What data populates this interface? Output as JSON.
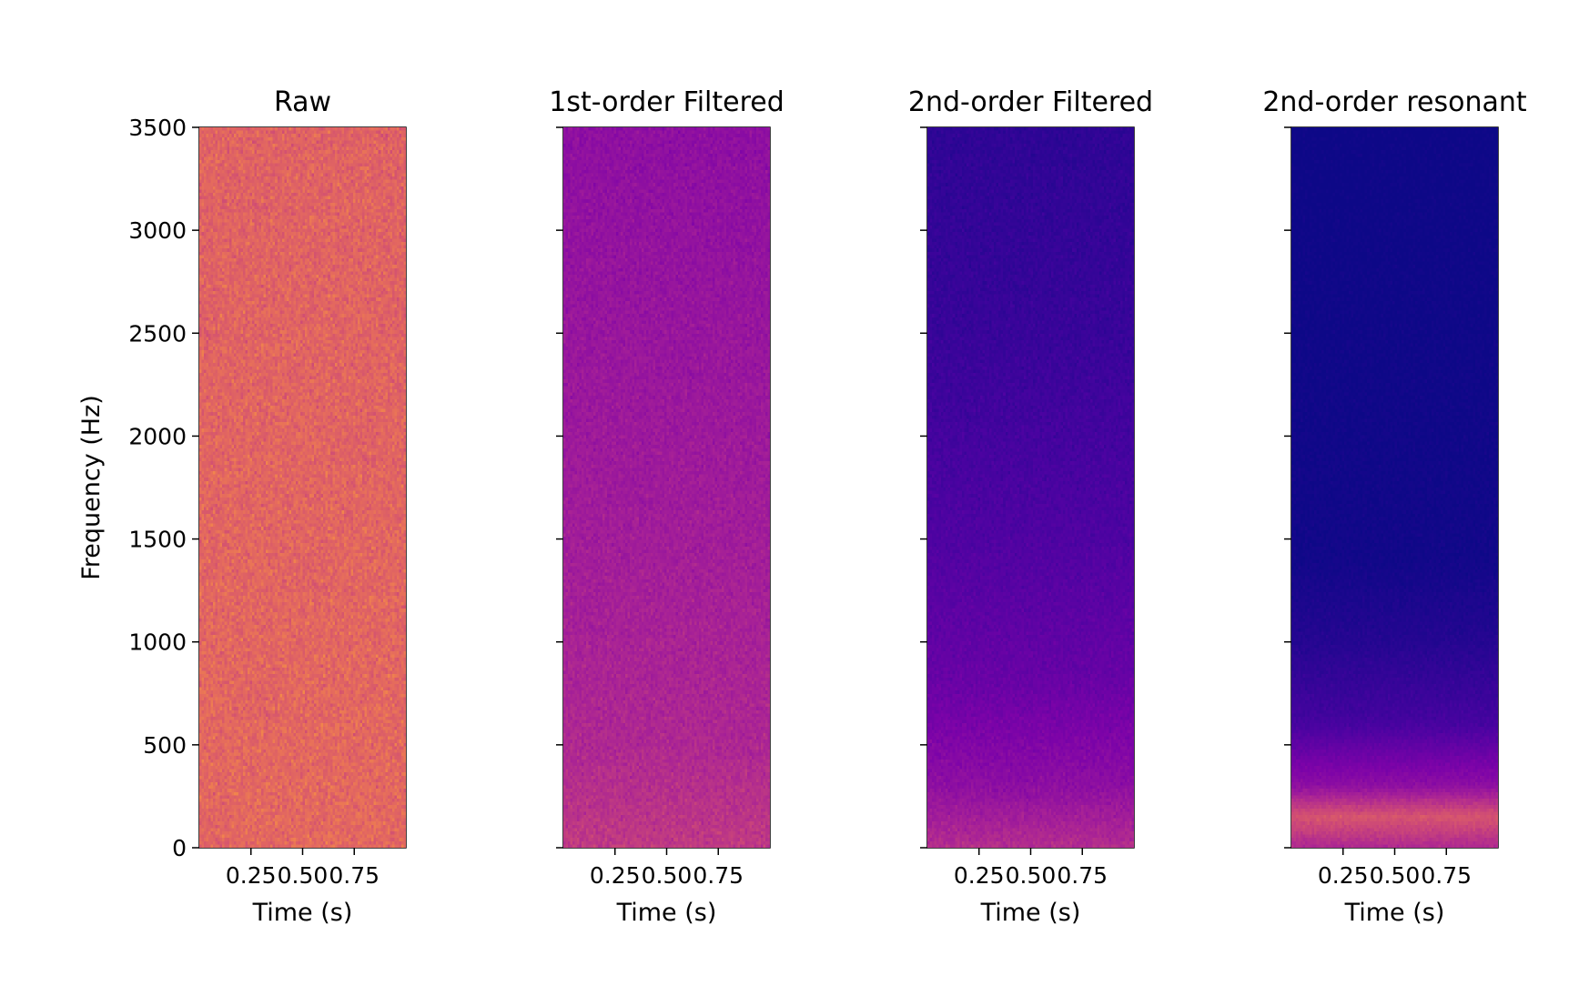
{
  "chart_data": [
    {
      "type": "heatmap",
      "title": "Raw",
      "xlabel": "Time (s)",
      "ylabel": "Frequency (Hz)",
      "x_ticks": [
        "0.25",
        "0.50",
        "0.75"
      ],
      "y_ticks": [
        "0",
        "500",
        "1000",
        "1500",
        "2000",
        "2500",
        "3000",
        "3500"
      ],
      "xlim": [
        0.0,
        1.0
      ],
      "ylim": [
        0,
        3500
      ],
      "colormap": "plasma",
      "intensity_profile": [
        {
          "freq": 0,
          "level": 0.62
        },
        {
          "freq": 3500,
          "level": 0.6
        }
      ],
      "noise": 0.1
    },
    {
      "type": "heatmap",
      "title": "1st-order Filtered",
      "xlabel": "Time (s)",
      "ylabel": "",
      "x_ticks": [
        "0.25",
        "0.50",
        "0.75"
      ],
      "y_ticks": [
        "",
        "",
        "",
        "",
        "",
        "",
        "",
        ""
      ],
      "xlim": [
        0.0,
        1.0
      ],
      "ylim": [
        0,
        3500
      ],
      "colormap": "plasma",
      "intensity_profile": [
        {
          "freq": 0,
          "level": 0.46
        },
        {
          "freq": 500,
          "level": 0.4
        },
        {
          "freq": 1500,
          "level": 0.36
        },
        {
          "freq": 3500,
          "level": 0.3
        }
      ],
      "noise": 0.08
    },
    {
      "type": "heatmap",
      "title": "2nd-order Filtered",
      "xlabel": "Time (s)",
      "ylabel": "",
      "x_ticks": [
        "0.25",
        "0.50",
        "0.75"
      ],
      "y_ticks": [
        "",
        "",
        "",
        "",
        "",
        "",
        "",
        ""
      ],
      "xlim": [
        0.0,
        1.0
      ],
      "ylim": [
        0,
        3500
      ],
      "colormap": "plasma",
      "intensity_profile": [
        {
          "freq": 0,
          "level": 0.42
        },
        {
          "freq": 300,
          "level": 0.3
        },
        {
          "freq": 800,
          "level": 0.2
        },
        {
          "freq": 1500,
          "level": 0.14
        },
        {
          "freq": 2500,
          "level": 0.09
        },
        {
          "freq": 3500,
          "level": 0.07
        }
      ],
      "noise": 0.07
    },
    {
      "type": "heatmap",
      "title": "2nd-order resonant",
      "xlabel": "Time (s)",
      "ylabel": "",
      "x_ticks": [
        "0.25",
        "0.50",
        "0.75"
      ],
      "y_ticks": [
        "",
        "",
        "",
        "",
        "",
        "",
        "",
        ""
      ],
      "xlim": [
        0.0,
        1.0
      ],
      "ylim": [
        0,
        3500
      ],
      "colormap": "plasma",
      "intensity_profile": [
        {
          "freq": 0,
          "level": 0.4
        },
        {
          "freq": 150,
          "level": 0.55
        },
        {
          "freq": 300,
          "level": 0.3
        },
        {
          "freq": 600,
          "level": 0.12
        },
        {
          "freq": 1000,
          "level": 0.05
        },
        {
          "freq": 1400,
          "level": 0.01
        },
        {
          "freq": 3500,
          "level": 0.0
        }
      ],
      "noise": 0.05
    }
  ]
}
